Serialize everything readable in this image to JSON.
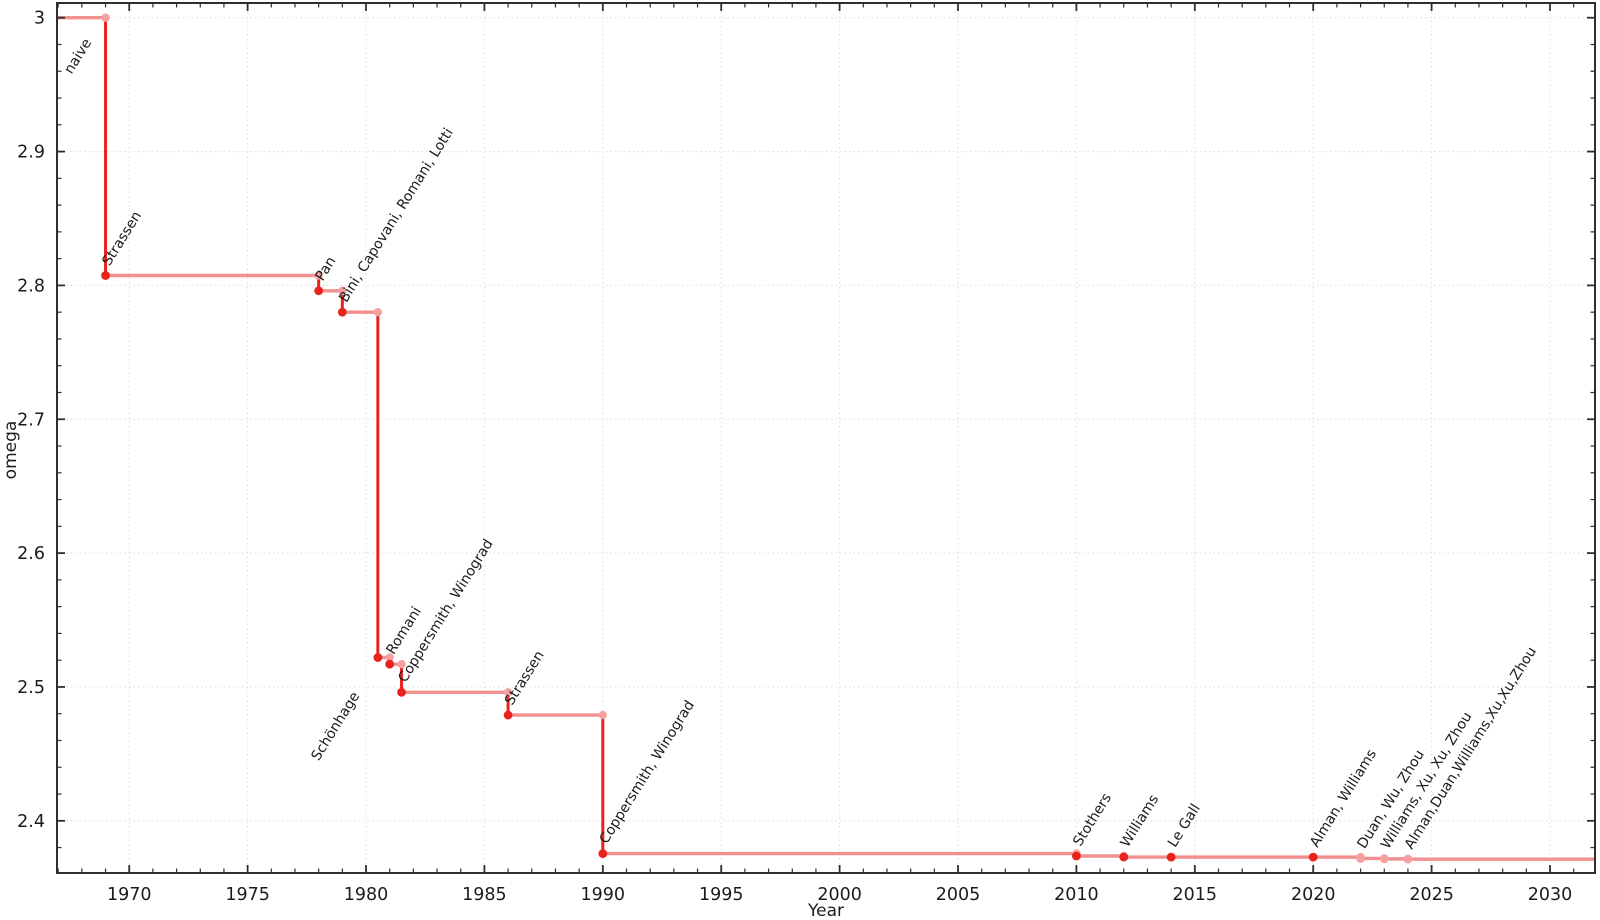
{
  "chart_data": {
    "type": "line",
    "line_style": "step-post",
    "title": "",
    "xlabel": "Year",
    "ylabel": "omega",
    "xlim": [
      1966.95,
      2031.9
    ],
    "ylim": [
      2.361,
      3.011
    ],
    "x_major_ticks": [
      1970,
      1975,
      1980,
      1985,
      1990,
      1995,
      2000,
      2005,
      2010,
      2015,
      2020,
      2025,
      2030
    ],
    "x_minor_step": 1,
    "y_major_ticks": [
      3.0,
      2.9,
      2.8,
      2.7,
      2.6,
      2.5,
      2.4
    ],
    "y_tick_labels": [
      "3",
      "2.9",
      "2.8",
      "2.7",
      "2.6",
      "2.5",
      "2.4"
    ],
    "y_minor_step": 0.02,
    "grid": "dotted",
    "legend": "none",
    "start": {
      "label": "naive",
      "omega": 3
    },
    "points": [
      {
        "year": 1969,
        "omega": 2.8074,
        "label": "Strassen",
        "recent": false
      },
      {
        "year": 1978,
        "omega": 2.796,
        "label": "Pan",
        "recent": false
      },
      {
        "year": 1979,
        "omega": 2.78,
        "label": "Bini, Capovani, Romani, Lotti",
        "recent": false
      },
      {
        "year": 1980.5,
        "omega": 2.522,
        "label": "Schönhage",
        "recent": false
      },
      {
        "year": 1981,
        "omega": 2.517,
        "label": "Romani",
        "recent": false
      },
      {
        "year": 1981.5,
        "omega": 2.496,
        "label": "Coppersmith, Winograd",
        "recent": false
      },
      {
        "year": 1986,
        "omega": 2.479,
        "label": "Strassen",
        "recent": false
      },
      {
        "year": 1990,
        "omega": 2.3755,
        "label": "Coppersmith, Winograd",
        "recent": false
      },
      {
        "year": 2010,
        "omega": 2.3737,
        "label": "Stothers",
        "recent": false
      },
      {
        "year": 2012,
        "omega": 2.3729,
        "label": "Williams",
        "recent": false
      },
      {
        "year": 2014,
        "omega": 2.3728639,
        "label": "Le Gall",
        "recent": false
      },
      {
        "year": 2020,
        "omega": 2.3728596,
        "label": "Alman, Williams",
        "recent": false
      },
      {
        "year": 2022,
        "omega": 2.371866,
        "label": "Duan, Wu, Zhou",
        "recent": true
      },
      {
        "year": 2023,
        "omega": 2.371552,
        "label": "Williams, Xu, Xu, Zhou",
        "recent": true
      },
      {
        "year": 2024,
        "omega": 2.371339,
        "label": "Alman,Duan,Williams,Xu,Xu,Zhou",
        "recent": true
      }
    ],
    "colors": {
      "plateau_line": "#f29090",
      "drop_line": "#e8231d",
      "point_new": "#e8231d",
      "point_old": "#f5a1a1",
      "label": "#1c1c1c",
      "label_recent": "#969696",
      "grid": "#dcdcdc",
      "axis": "#2e2e2e"
    }
  }
}
